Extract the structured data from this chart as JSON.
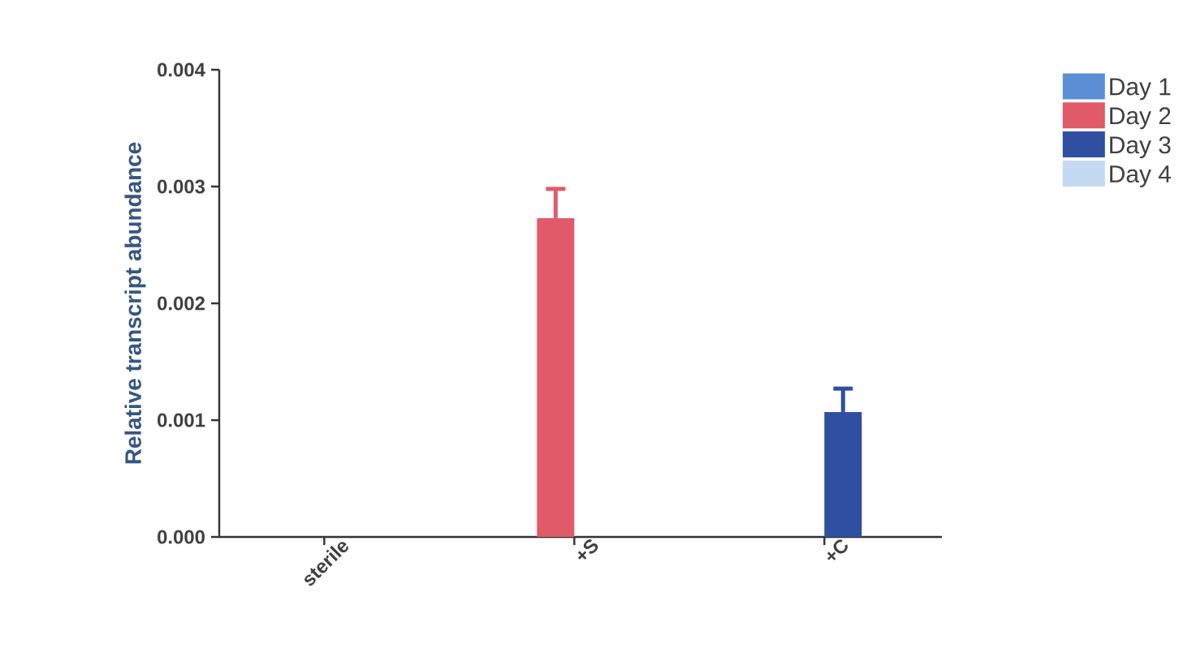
{
  "chart_data": {
    "type": "bar",
    "ylabel": "Relative transcript abundance",
    "categories": [
      "sterile",
      "+S",
      "+C"
    ],
    "series": [
      {
        "name": "Day 1",
        "color": "#5a8fd6",
        "values": [
          0,
          0,
          0
        ]
      },
      {
        "name": "Day 2",
        "color": "#e05a6a",
        "values": [
          0,
          0.00273,
          0
        ],
        "errors": [
          null,
          0.00025,
          null
        ]
      },
      {
        "name": "Day 3",
        "color": "#2f4fa0",
        "values": [
          0,
          0,
          0.00107
        ],
        "errors": [
          null,
          null,
          0.0002
        ]
      },
      {
        "name": "Day 4",
        "color": "#c6d9f2",
        "values": [
          0,
          0,
          0
        ]
      }
    ],
    "ylim": [
      0,
      0.004
    ],
    "yticks": [
      {
        "value": 0,
        "label": "0.000"
      },
      {
        "value": 0.001,
        "label": "0.001"
      },
      {
        "value": 0.002,
        "label": "0.002"
      },
      {
        "value": 0.003,
        "label": "0.003"
      },
      {
        "value": 0.004,
        "label": "0.004"
      }
    ],
    "legend": "right",
    "grid": false
  }
}
